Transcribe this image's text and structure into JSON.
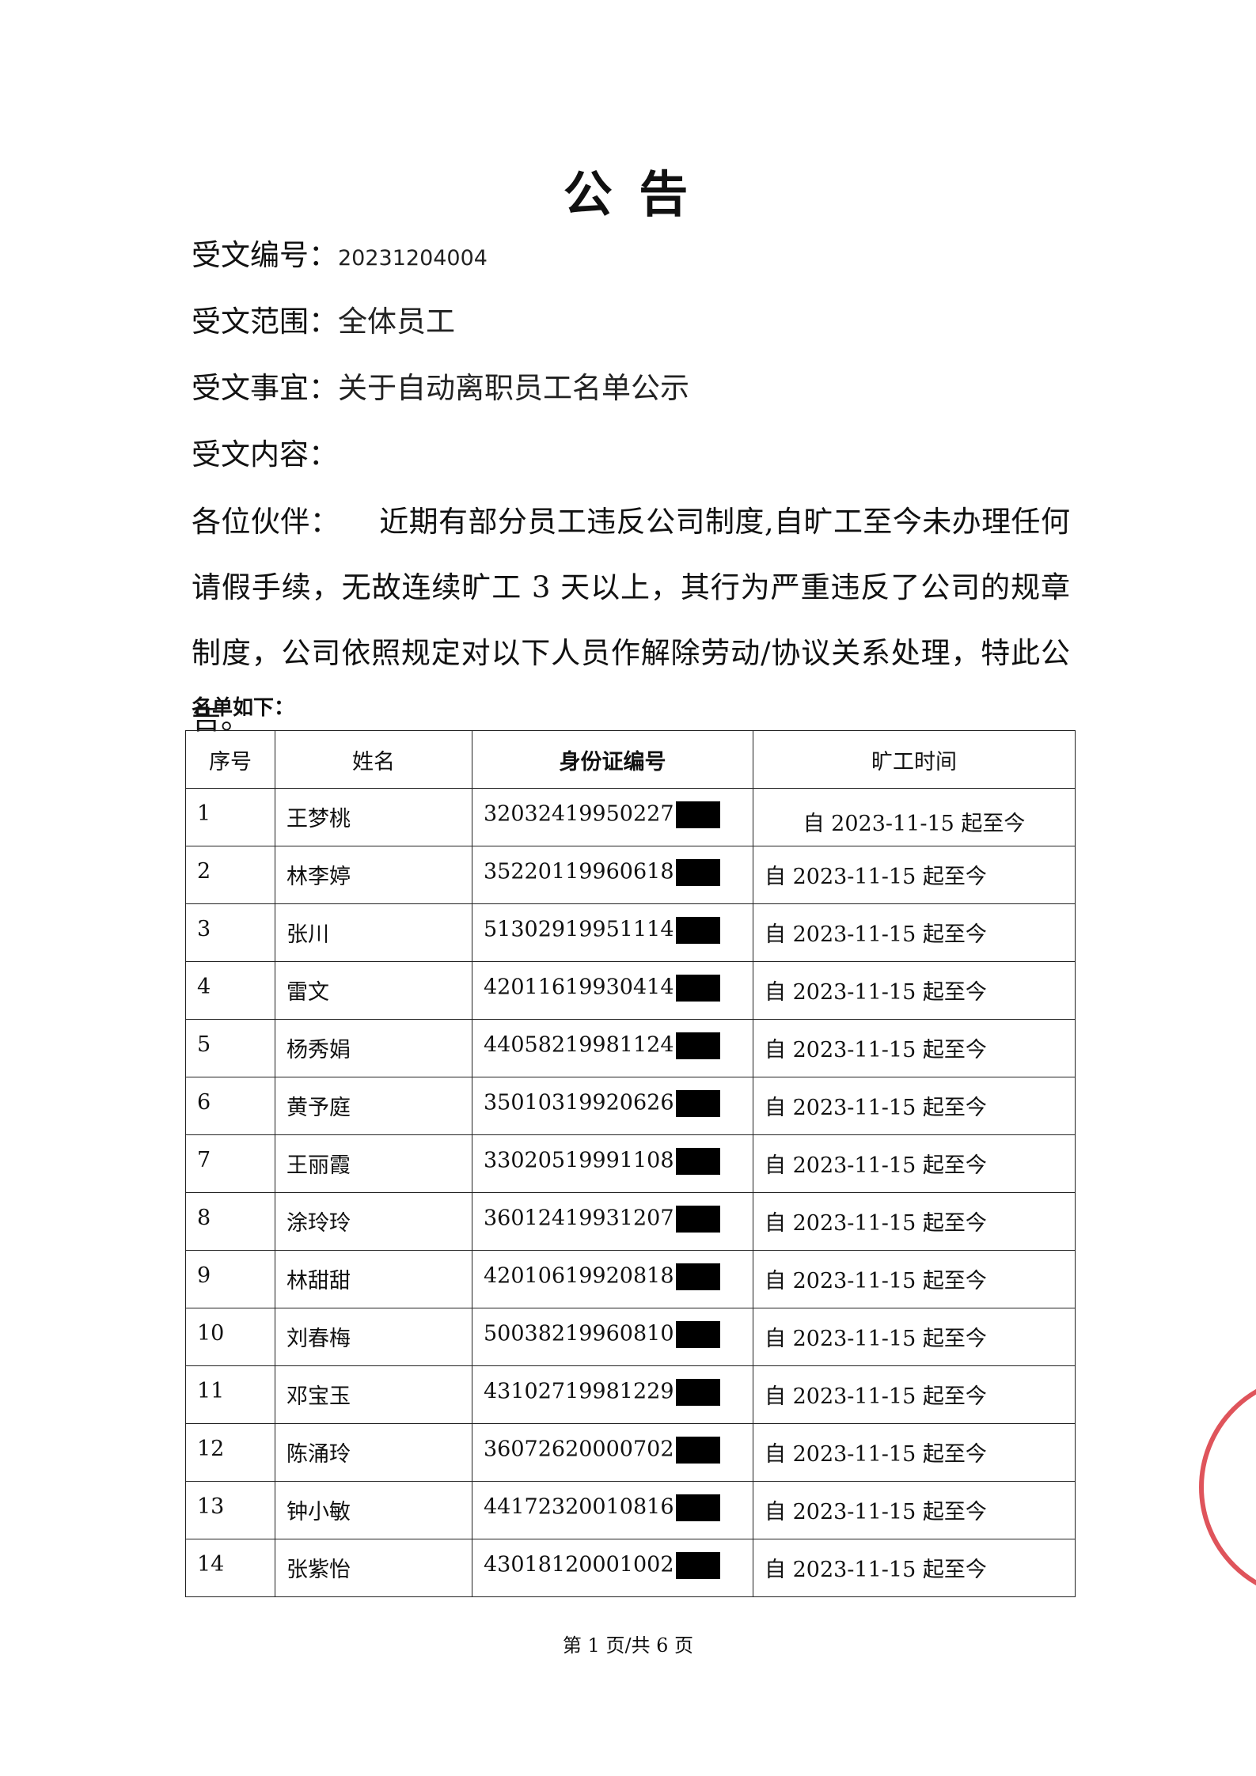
{
  "title": "公 告",
  "fields": [
    {
      "label": "受文编号：",
      "value": "20231204004"
    },
    {
      "label": "受文范围：",
      "value": "全体员工"
    },
    {
      "label": "受文事宜：",
      "value": "关于自动离职员工名单公示"
    },
    {
      "label": "受文内容：",
      "value": ""
    }
  ],
  "body": {
    "greeting": "各位伙伴：",
    "text": "近期有部分员工违反公司制度,自旷工至今未办理任何请假手续，无故连续旷工 3 天以上，其行为严重违反了公司的规章制度，公司依照规定对以下人员作解除劳动/协议关系处理，特此公告。"
  },
  "list_title": "名单如下：",
  "table": {
    "headers": [
      "序号",
      "姓名",
      "身份证编号",
      "旷工时间"
    ],
    "rows": [
      [
        "1",
        "王梦桃",
        "32032419950227",
        "自 2023-11-15 起至今"
      ],
      [
        "2",
        "林李婷",
        "35220119960618",
        "自 2023-11-15 起至今"
      ],
      [
        "3",
        "张川",
        "51302919951114",
        "自 2023-11-15 起至今"
      ],
      [
        "4",
        "雷文",
        "42011619930414",
        "自 2023-11-15 起至今"
      ],
      [
        "5",
        "杨秀娟",
        "44058219981124",
        "自 2023-11-15 起至今"
      ],
      [
        "6",
        "黄予庭",
        "35010319920626",
        "自 2023-11-15 起至今"
      ],
      [
        "7",
        "王丽霞",
        "33020519991108",
        "自 2023-11-15 起至今"
      ],
      [
        "8",
        "涂玲玲",
        "36012419931207",
        "自 2023-11-15 起至今"
      ],
      [
        "9",
        "林甜甜",
        "42010619920818",
        "自 2023-11-15 起至今"
      ],
      [
        "10",
        "刘春梅",
        "50038219960810",
        "自 2023-11-15 起至今"
      ],
      [
        "11",
        "邓宝玉",
        "43102719981229",
        "自 2023-11-15 起至今"
      ],
      [
        "12",
        "陈涌玲",
        "36072620000702",
        "自 2023-11-15 起至今"
      ],
      [
        "13",
        "钟小敏",
        "44172320010816",
        "自 2023-11-15 起至今"
      ],
      [
        "14",
        "张紫怡",
        "43018120001002",
        "自 2023-11-15 起至今"
      ]
    ]
  },
  "footer": "第 1 页/共 6 页"
}
